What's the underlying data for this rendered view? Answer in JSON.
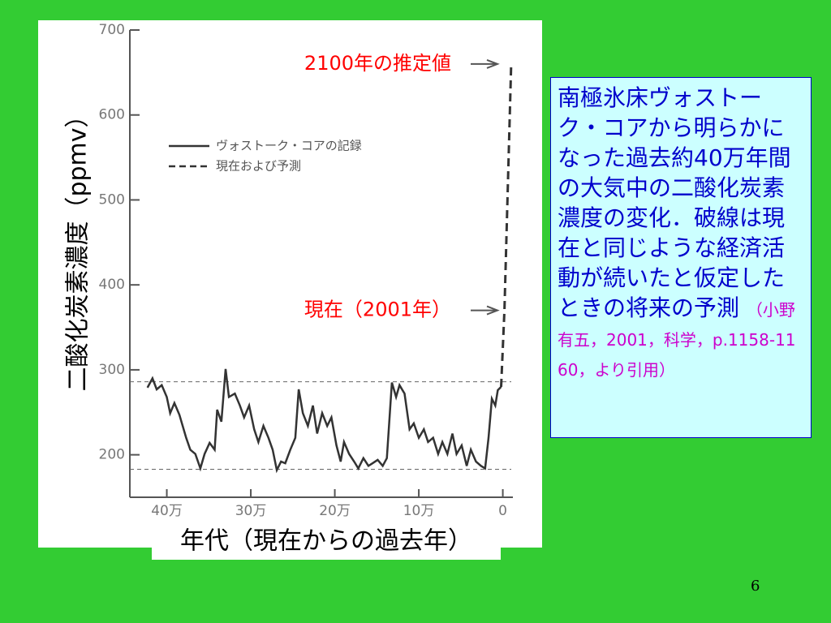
{
  "chart_data": {
    "type": "line",
    "y_label": "二酸化炭素濃度（ppmv）",
    "x_label": "年代（現在からの過去年）",
    "xlim": [
      444000,
      -12000
    ],
    "xticks": [
      {
        "value": 400000,
        "label": "40万"
      },
      {
        "value": 300000,
        "label": "30万"
      },
      {
        "value": 200000,
        "label": "20万"
      },
      {
        "value": 100000,
        "label": "10万"
      },
      0
    ],
    "ylim": [
      150,
      700
    ],
    "yticks": [
      200,
      300,
      400,
      500,
      600,
      700
    ],
    "reference_lines": [
      286,
      183
    ],
    "series": [
      {
        "name": "ヴォストーク・コアの記録",
        "color": "#333333",
        "dash": false,
        "x": [
          423000,
          417000,
          412000,
          406000,
          400000,
          396000,
          391000,
          385000,
          377000,
          372000,
          366000,
          360000,
          355000,
          349000,
          343000,
          340000,
          335000,
          330000,
          326000,
          319000,
          313000,
          308000,
          302000,
          296000,
          291000,
          285000,
          279000,
          274000,
          269000,
          264000,
          259000,
          253000,
          247000,
          243000,
          238000,
          232000,
          226000,
          221000,
          215000,
          209000,
          204000,
          198000,
          193000,
          189000,
          183000,
          177000,
          172000,
          166000,
          160000,
          155000,
          149000,
          143000,
          138000,
          132000,
          127000,
          123000,
          117000,
          111000,
          106000,
          100000,
          94000,
          89000,
          83000,
          77000,
          72000,
          66000,
          60000,
          55000,
          49000,
          43000,
          38000,
          32000,
          26000,
          21000,
          17000,
          13000,
          9000,
          6000,
          2000
        ],
        "values": [
          279,
          290,
          277,
          282,
          268,
          249,
          261,
          247,
          220,
          206,
          201,
          184,
          201,
          214,
          206,
          253,
          239,
          301,
          268,
          272,
          258,
          244,
          258,
          230,
          215,
          234,
          220,
          206,
          182,
          192,
          190,
          206,
          220,
          277,
          249,
          234,
          258,
          225,
          249,
          234,
          244,
          211,
          192,
          215,
          201,
          192,
          184,
          196,
          187,
          190,
          194,
          187,
          196,
          285,
          268,
          282,
          272,
          230,
          237,
          220,
          230,
          215,
          220,
          201,
          215,
          201,
          225,
          201,
          211,
          187,
          206,
          192,
          187,
          184,
          220,
          266,
          258,
          276,
          280
        ]
      },
      {
        "name": "現在および予測",
        "color": "#333333",
        "dash": true,
        "x": [
          2000,
          -2000,
          -10000
        ],
        "values": [
          280,
          370,
          660
        ]
      }
    ],
    "annotations": [
      {
        "text": "2100年の推定値",
        "value": 660
      },
      {
        "text": "現在（2001年）",
        "value": 370
      }
    ]
  },
  "description": "南極氷床ヴォストーク・コアから明らかになった過去約40万年間の大気中の二酸化炭素濃度の変化．破線は現在と同じような経済活動が続いたと仮定したときの将来の予測",
  "citation": "（小野有五，2001，科学，p.1158-1160，より引用）",
  "page_number": "6"
}
